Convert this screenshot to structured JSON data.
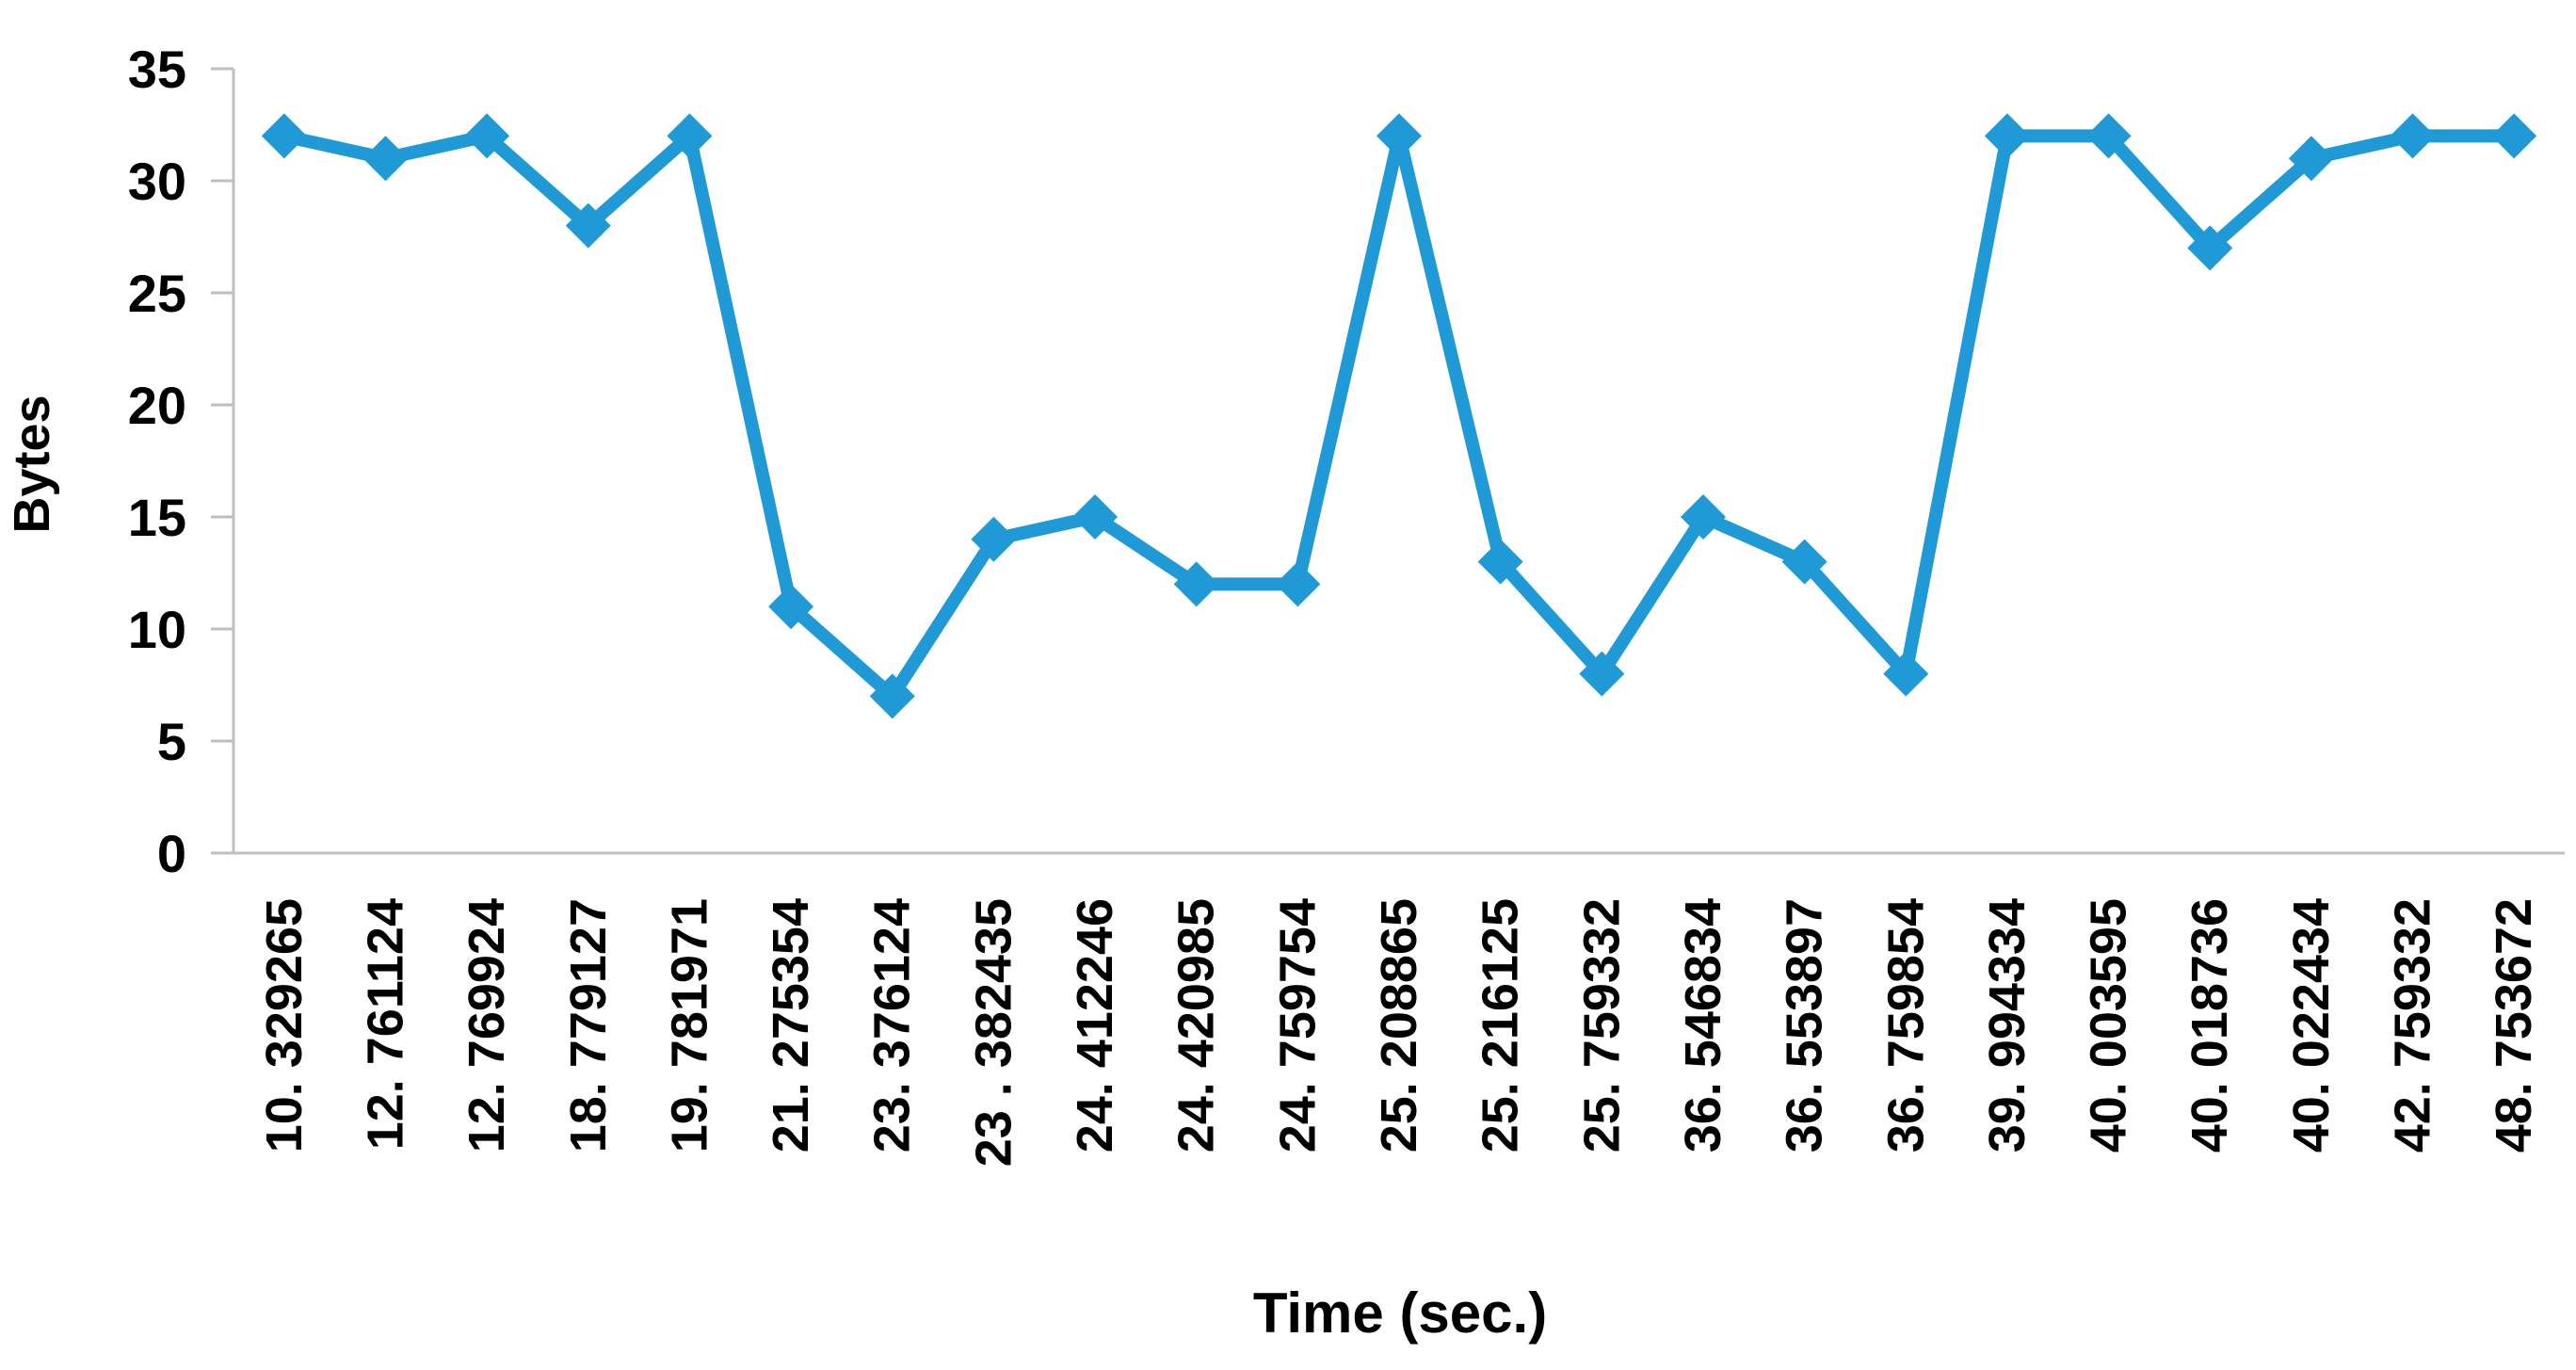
{
  "chart_data": {
    "type": "line",
    "title": "",
    "xlabel": "Time (sec.)",
    "ylabel": "Bytes",
    "ylim": [
      0,
      35
    ],
    "yticks": [
      "0",
      "5",
      "10",
      "15",
      "20",
      "25",
      "30",
      "35"
    ],
    "grid": false,
    "legend": "none",
    "marker": "diamond",
    "categories": [
      "10. 329265",
      "12. 761124",
      "12. 769924",
      "18. 779127",
      "19. 781971",
      "21. 275354",
      "23. 376124",
      "23 . 382435",
      "24. 412246",
      "24. 420985",
      "24. 759754",
      "25. 208865",
      "25. 216125",
      "25. 759332",
      "36. 546834",
      "36. 553897",
      "36. 759854",
      "39. 994334",
      "40. 003595",
      "40. 018736",
      "40. 022434",
      "42. 759332",
      "48. 753672"
    ],
    "series": [
      {
        "color": "#1f9ad6",
        "values": [
          32,
          31,
          32,
          28,
          32,
          11,
          7,
          14,
          15,
          12,
          12,
          32,
          13,
          8,
          15,
          13,
          8,
          32,
          32,
          27,
          31,
          32,
          32
        ]
      }
    ]
  },
  "colors": {
    "line": "#1f9ad6",
    "axis": "#bfbfbf",
    "text": "#000000"
  }
}
